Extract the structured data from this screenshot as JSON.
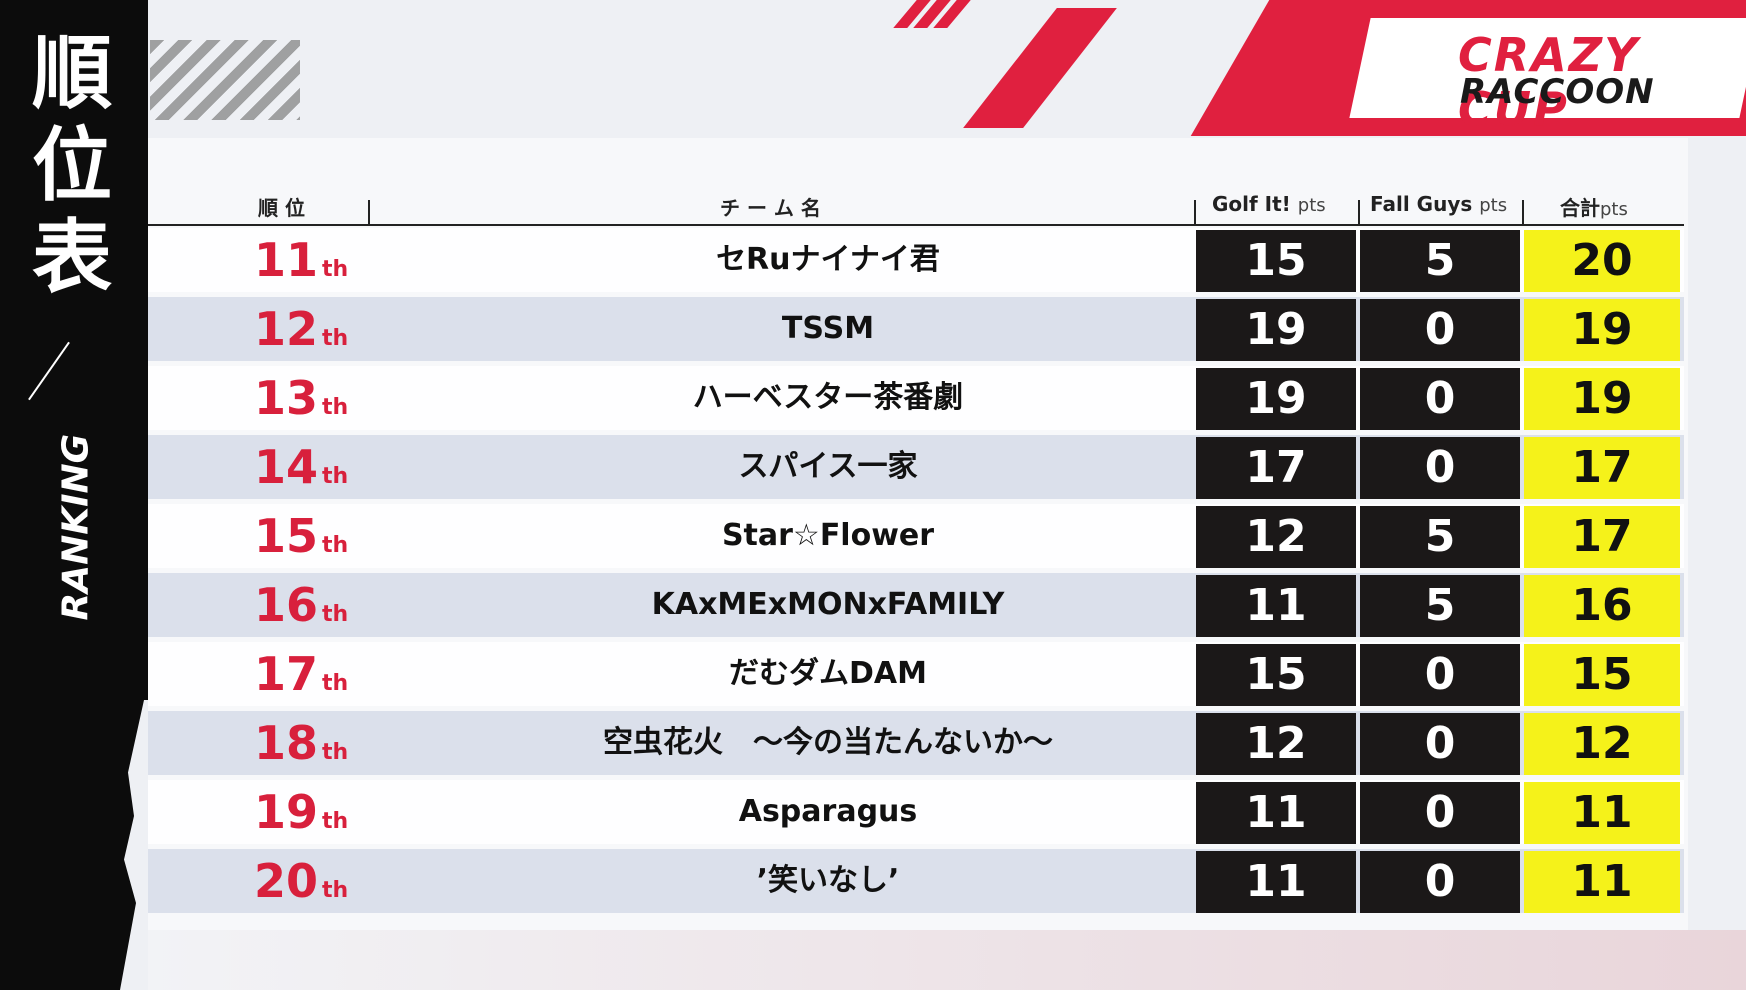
{
  "title": {
    "jp": "順位表",
    "en": "RANKING"
  },
  "logo": {
    "line1": "CRAZY CUP",
    "line2": "RACCOON"
  },
  "columns": {
    "rank": "順 位",
    "team": "チ ー ム 名",
    "golf": "Golf It!",
    "fall": "Fall Guys",
    "total": "合計",
    "pts": "pts"
  },
  "colors": {
    "accent": "#d8203c",
    "score_bg": "#1b1818",
    "total_bg": "#f5f21a"
  },
  "rows": [
    {
      "rank": "11",
      "suffix": "th",
      "team": "セRuナイナイ君",
      "golf": "15",
      "fall": "5",
      "total": "20"
    },
    {
      "rank": "12",
      "suffix": "th",
      "team": "TSSM",
      "golf": "19",
      "fall": "0",
      "total": "19"
    },
    {
      "rank": "13",
      "suffix": "th",
      "team": "ハーベスター茶番劇",
      "golf": "19",
      "fall": "0",
      "total": "19"
    },
    {
      "rank": "14",
      "suffix": "th",
      "team": "スパイス一家",
      "golf": "17",
      "fall": "0",
      "total": "17"
    },
    {
      "rank": "15",
      "suffix": "th",
      "team": "Star☆Flower",
      "golf": "12",
      "fall": "5",
      "total": "17"
    },
    {
      "rank": "16",
      "suffix": "th",
      "team": "KAxMExMONxFAMILY",
      "golf": "11",
      "fall": "5",
      "total": "16"
    },
    {
      "rank": "17",
      "suffix": "th",
      "team": "だむダムDAM",
      "golf": "15",
      "fall": "0",
      "total": "15"
    },
    {
      "rank": "18",
      "suffix": "th",
      "team": "空虫花火　～今の当たんないか～",
      "golf": "12",
      "fall": "0",
      "total": "12"
    },
    {
      "rank": "19",
      "suffix": "th",
      "team": "Asparagus",
      "golf": "11",
      "fall": "0",
      "total": "11"
    },
    {
      "rank": "20",
      "suffix": "th",
      "team": "’笑いなし’",
      "golf": "11",
      "fall": "0",
      "total": "11"
    }
  ]
}
